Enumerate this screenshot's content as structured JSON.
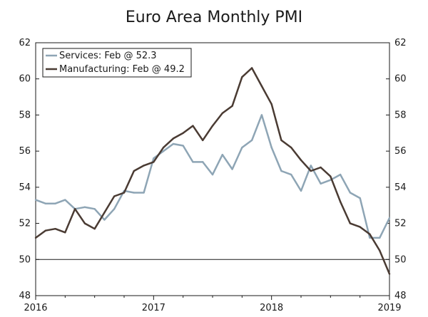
{
  "chart_data": {
    "type": "line",
    "title": "Euro Area Monthly PMI",
    "xlabel": "",
    "ylabel": "",
    "ylim": [
      48,
      62
    ],
    "yticks": [
      48,
      50,
      52,
      54,
      56,
      58,
      60,
      62
    ],
    "xlim": [
      2016.0,
      2019.0
    ],
    "xticks": [
      {
        "value": 2016,
        "label": "2016"
      },
      {
        "value": 2017,
        "label": "2017"
      },
      {
        "value": 2018,
        "label": "2018"
      },
      {
        "value": 2019,
        "label": "2019"
      }
    ],
    "reference_line": 50,
    "legend_position": "top-left",
    "series": [
      {
        "name": "Services: Feb @ 52.3",
        "color": "#8ea5b5",
        "start": 2016.0,
        "step": 0.0833333,
        "values": [
          53.3,
          53.1,
          53.1,
          53.3,
          52.8,
          52.9,
          52.8,
          52.2,
          52.8,
          53.8,
          53.7,
          53.7,
          55.6,
          56.0,
          56.4,
          56.3,
          55.4,
          55.4,
          54.7,
          55.8,
          55.0,
          56.2,
          56.6,
          58.0,
          56.2,
          54.9,
          54.7,
          53.8,
          55.2,
          54.2,
          54.4,
          54.7,
          53.7,
          53.4,
          51.2,
          51.2,
          52.3
        ]
      },
      {
        "name": "Manufacturing: Feb @ 49.2",
        "color": "#4a3b33",
        "start": 2016.0,
        "step": 0.0833333,
        "values": [
          51.2,
          51.6,
          51.7,
          51.5,
          52.8,
          52.0,
          51.7,
          52.6,
          53.5,
          53.7,
          54.9,
          55.2,
          55.4,
          56.2,
          56.7,
          57.0,
          57.4,
          56.6,
          57.4,
          58.1,
          58.5,
          60.1,
          60.6,
          59.6,
          58.6,
          56.6,
          56.2,
          55.5,
          54.9,
          55.1,
          54.6,
          53.2,
          52.0,
          51.8,
          51.4,
          50.5,
          49.2
        ]
      }
    ]
  }
}
